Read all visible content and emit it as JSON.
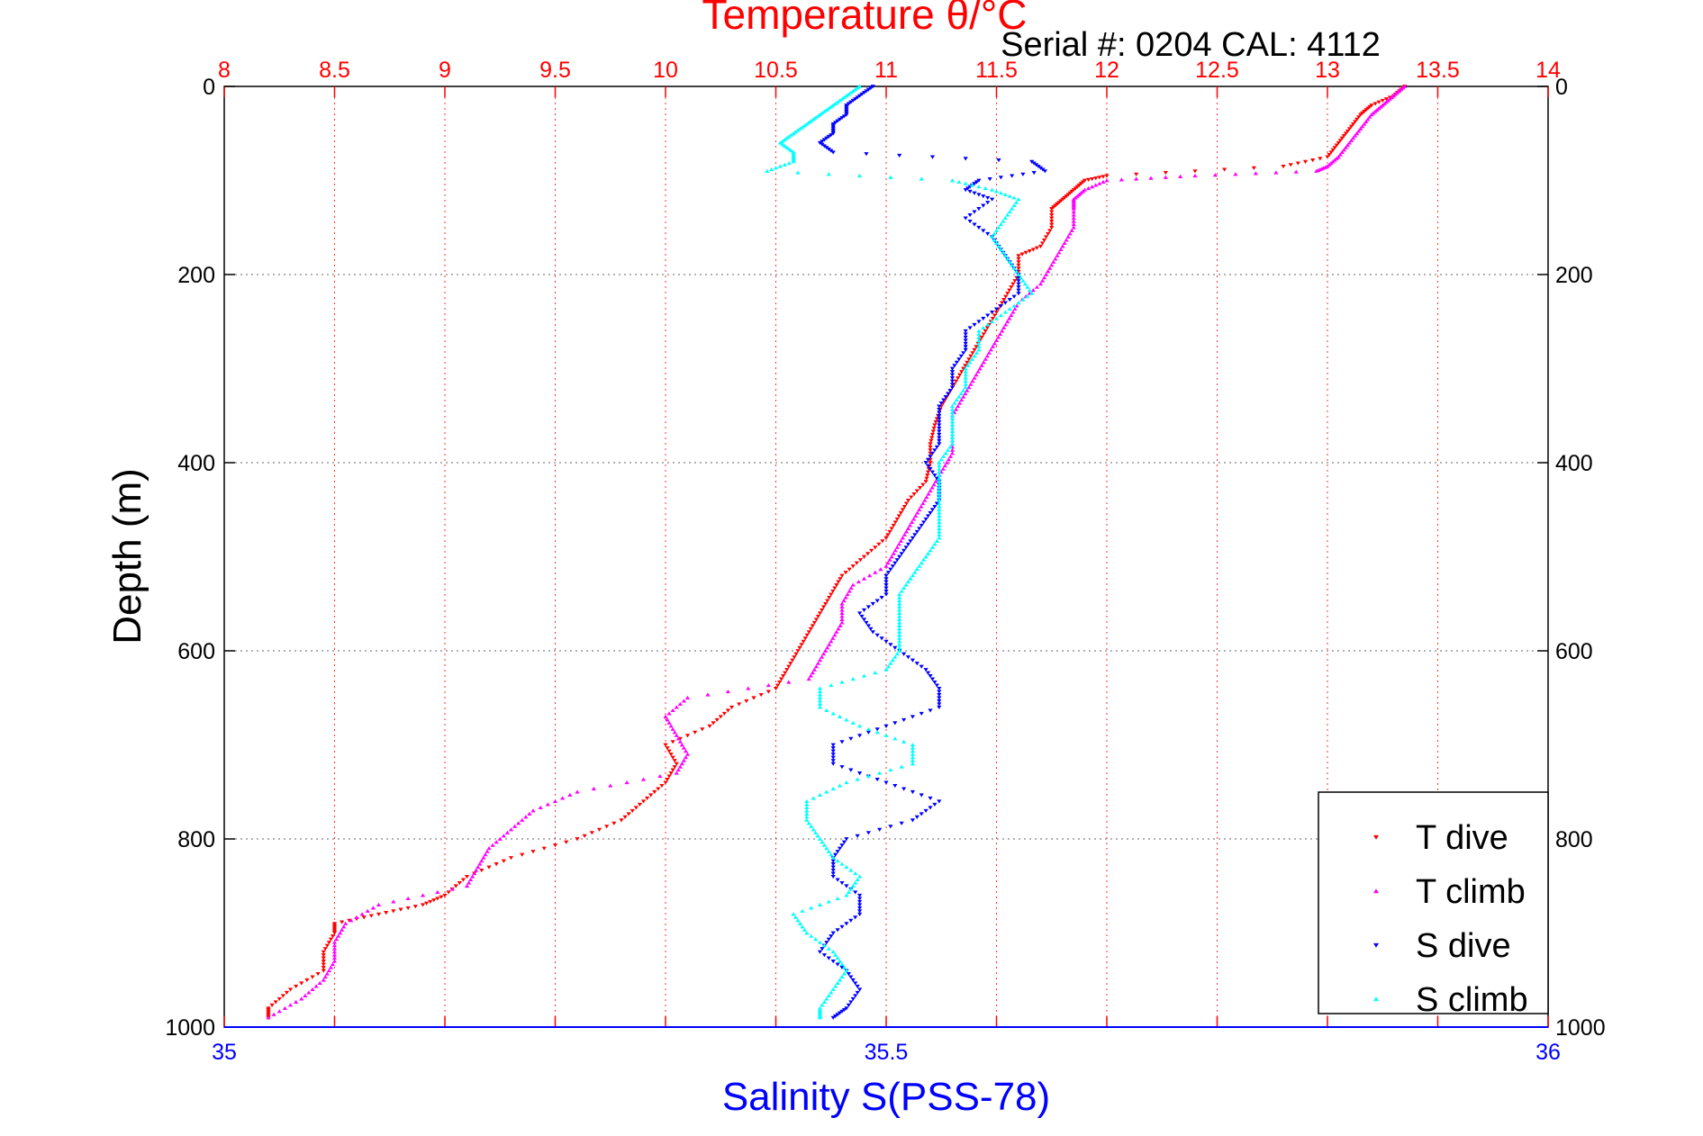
{
  "chart_data": {
    "type": "scatter",
    "title": "Temperature θ/°C",
    "subtitle": "Serial #: 0204  CAL: 4112",
    "xlabel_top": "Temperature θ/°C",
    "xlabel_bottom": "Salinity S(PSS-78)",
    "ylabel": "Depth (m)",
    "x_top_range": [
      8,
      14
    ],
    "x_top_ticks": [
      "8",
      "8.5",
      "9",
      "9.5",
      "10",
      "10.5",
      "11",
      "11.5",
      "12",
      "12.5",
      "13",
      "13.5",
      "14"
    ],
    "x_bottom_range": [
      35,
      36
    ],
    "x_bottom_ticks": [
      "35",
      "35.5",
      "36"
    ],
    "y_range": [
      0,
      1000
    ],
    "y_reversed": true,
    "y_ticks": [
      "0",
      "200",
      "400",
      "600",
      "800",
      "1000"
    ],
    "grid": true,
    "legend_position": "bottom-right",
    "colors": {
      "t_dive": "#ff0000",
      "t_climb": "#ff00ff",
      "s_dive": "#0000ff",
      "s_climb": "#00ffff",
      "top_axis": "#ff0000",
      "bottom_axis": "#0000ff"
    },
    "series": [
      {
        "name": "T dive",
        "axis": "temperature",
        "marker": "triangle-down",
        "depth": [
          0,
          10,
          20,
          30,
          45,
          60,
          75,
          85,
          95,
          100,
          110,
          120,
          130,
          150,
          170,
          180,
          200,
          220,
          240,
          260,
          280,
          300,
          320,
          340,
          360,
          380,
          400,
          420,
          440,
          460,
          480,
          500,
          520,
          540,
          560,
          580,
          600,
          620,
          640,
          660,
          680,
          700,
          720,
          740,
          760,
          780,
          800,
          820,
          840,
          860,
          870,
          880,
          890,
          900,
          920,
          940,
          960,
          980,
          990
        ],
        "values": [
          13.35,
          13.3,
          13.2,
          13.15,
          13.1,
          13.05,
          13.0,
          12.8,
          12.0,
          11.9,
          11.85,
          11.8,
          11.75,
          11.75,
          11.7,
          11.6,
          11.6,
          11.55,
          11.5,
          11.45,
          11.4,
          11.35,
          11.3,
          11.25,
          11.22,
          11.2,
          11.2,
          11.18,
          11.1,
          11.05,
          11.0,
          10.9,
          10.8,
          10.75,
          10.7,
          10.65,
          10.6,
          10.55,
          10.5,
          10.3,
          10.2,
          10.0,
          10.05,
          10.0,
          9.9,
          9.8,
          9.6,
          9.3,
          9.1,
          9.0,
          8.9,
          8.7,
          8.5,
          8.5,
          8.45,
          8.45,
          8.3,
          8.2,
          8.2
        ]
      },
      {
        "name": "T climb",
        "axis": "temperature",
        "marker": "triangle-up",
        "depth": [
          0,
          10,
          20,
          30,
          45,
          60,
          75,
          85,
          90,
          95,
          100,
          110,
          120,
          130,
          150,
          170,
          190,
          210,
          230,
          250,
          270,
          290,
          310,
          330,
          350,
          370,
          390,
          410,
          430,
          450,
          470,
          490,
          510,
          530,
          550,
          570,
          590,
          610,
          630,
          650,
          670,
          690,
          710,
          730,
          750,
          770,
          790,
          810,
          830,
          850,
          870,
          890,
          910,
          930,
          950,
          970,
          990
        ],
        "values": [
          13.35,
          13.3,
          13.25,
          13.2,
          13.15,
          13.1,
          13.05,
          13.0,
          12.95,
          12.4,
          12.0,
          11.9,
          11.85,
          11.85,
          11.85,
          11.8,
          11.75,
          11.7,
          11.6,
          11.55,
          11.5,
          11.45,
          11.4,
          11.35,
          11.3,
          11.3,
          11.3,
          11.25,
          11.2,
          11.15,
          11.1,
          11.05,
          11.0,
          10.85,
          10.8,
          10.8,
          10.75,
          10.7,
          10.65,
          10.1,
          10.0,
          10.05,
          10.1,
          10.05,
          9.6,
          9.4,
          9.3,
          9.2,
          9.15,
          9.1,
          8.7,
          8.55,
          8.5,
          8.5,
          8.45,
          8.35,
          8.2
        ]
      },
      {
        "name": "S dive",
        "axis": "salinity",
        "marker": "triangle-down",
        "depth": [
          0,
          10,
          20,
          30,
          40,
          50,
          60,
          70,
          80,
          90,
          100,
          110,
          120,
          140,
          160,
          180,
          200,
          220,
          240,
          260,
          280,
          300,
          320,
          340,
          360,
          380,
          400,
          420,
          440,
          460,
          480,
          500,
          520,
          540,
          560,
          580,
          600,
          620,
          640,
          660,
          680,
          700,
          720,
          740,
          760,
          780,
          800,
          820,
          840,
          860,
          880,
          900,
          920,
          940,
          960,
          980,
          990
        ],
        "values": [
          35.49,
          35.48,
          35.47,
          35.47,
          35.46,
          35.46,
          35.45,
          35.46,
          35.61,
          35.62,
          35.57,
          35.56,
          35.58,
          35.56,
          35.58,
          35.59,
          35.6,
          35.6,
          35.58,
          35.56,
          35.56,
          35.55,
          35.55,
          35.54,
          35.54,
          35.54,
          35.53,
          35.54,
          35.54,
          35.53,
          35.52,
          35.51,
          35.5,
          35.5,
          35.48,
          35.49,
          35.51,
          35.53,
          35.54,
          35.54,
          35.5,
          35.46,
          35.46,
          35.5,
          35.54,
          35.52,
          35.47,
          35.46,
          35.46,
          35.48,
          35.48,
          35.46,
          35.45,
          35.47,
          35.48,
          35.47,
          35.46
        ]
      },
      {
        "name": "S climb",
        "axis": "salinity",
        "marker": "triangle-up",
        "depth": [
          0,
          10,
          20,
          30,
          40,
          50,
          60,
          70,
          80,
          90,
          100,
          110,
          120,
          140,
          160,
          180,
          200,
          220,
          240,
          260,
          280,
          300,
          320,
          340,
          360,
          380,
          400,
          420,
          440,
          460,
          480,
          500,
          520,
          540,
          560,
          580,
          600,
          620,
          640,
          660,
          680,
          700,
          720,
          740,
          760,
          780,
          800,
          820,
          840,
          860,
          880,
          900,
          920,
          940,
          960,
          980,
          990
        ],
        "values": [
          35.48,
          35.47,
          35.46,
          35.45,
          35.44,
          35.43,
          35.42,
          35.43,
          35.43,
          35.41,
          35.55,
          35.58,
          35.6,
          35.59,
          35.58,
          35.59,
          35.6,
          35.61,
          35.59,
          35.57,
          35.57,
          35.56,
          35.56,
          35.55,
          35.55,
          35.55,
          35.54,
          35.54,
          35.54,
          35.54,
          35.54,
          35.53,
          35.52,
          35.51,
          35.51,
          35.51,
          35.51,
          35.5,
          35.45,
          35.45,
          35.48,
          35.52,
          35.52,
          35.47,
          35.44,
          35.44,
          35.45,
          35.46,
          35.48,
          35.47,
          35.43,
          35.44,
          35.46,
          35.47,
          35.46,
          35.45,
          35.45
        ]
      }
    ]
  }
}
